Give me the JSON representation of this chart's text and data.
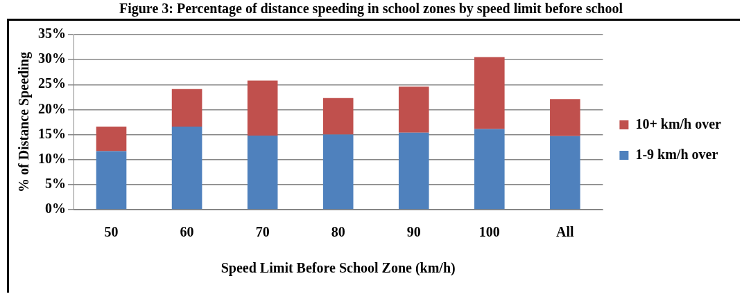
{
  "chart_data": {
    "type": "bar",
    "title": "Figure 3: Percentage of distance speeding in school zones by speed limit before school",
    "xlabel": "Speed Limit Before School Zone (km/h)",
    "ylabel": "% of Distance Speeding",
    "categories": [
      "50",
      "60",
      "70",
      "80",
      "90",
      "100",
      "All"
    ],
    "stacked": true,
    "series": [
      {
        "name": "1-9 km/h over",
        "color": "#4f81bd",
        "values": [
          11.7,
          16.6,
          14.8,
          15.0,
          15.4,
          16.1,
          14.7
        ]
      },
      {
        "name": "10+ km/h over",
        "color": "#c0504d",
        "values": [
          4.9,
          7.5,
          11.0,
          7.3,
          9.2,
          14.4,
          7.4
        ]
      }
    ],
    "ylim": [
      0,
      35
    ],
    "yticks": [
      {
        "value": 0,
        "label": "0%"
      },
      {
        "value": 5,
        "label": "5%"
      },
      {
        "value": 10,
        "label": "10%"
      },
      {
        "value": 15,
        "label": "15%"
      },
      {
        "value": 20,
        "label": "20%"
      },
      {
        "value": 25,
        "label": "25%"
      },
      {
        "value": 30,
        "label": "30%"
      },
      {
        "value": 35,
        "label": "35%"
      }
    ],
    "grid": "y",
    "legend": "right"
  }
}
